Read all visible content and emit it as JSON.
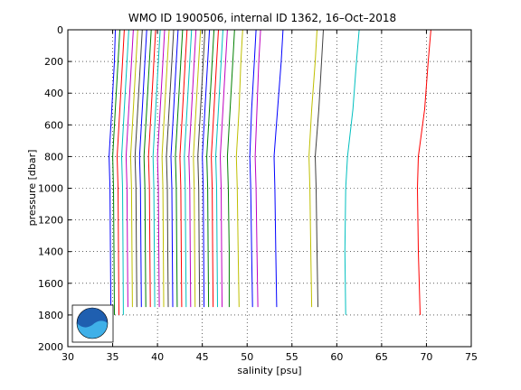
{
  "chart_data": {
    "type": "line",
    "title": "WMO ID 1900506, internal ID 1362, 16–Oct–2018",
    "xlabel": "salinity [psu]",
    "ylabel": "pressure [dbar]",
    "xlim": [
      30,
      75
    ],
    "ylim": [
      0,
      2000
    ],
    "y_reversed": true,
    "grid": true,
    "legend": "none",
    "xticks": [
      "30",
      "35",
      "40",
      "45",
      "50",
      "55",
      "60",
      "65",
      "70",
      "75"
    ],
    "yticks": [
      "0",
      "200",
      "400",
      "600",
      "800",
      "1000",
      "1200",
      "1400",
      "1600",
      "1800",
      "2000"
    ],
    "colors": [
      "#0000ff",
      "#008000",
      "#ff0000",
      "#00bfbf",
      "#bf00bf",
      "#bfbf00",
      "#404040"
    ],
    "series": [
      {
        "color": "#0000ff",
        "points": [
          [
            35.3,
            0
          ],
          [
            35.2,
            200
          ],
          [
            34.9,
            500
          ],
          [
            34.6,
            800
          ],
          [
            34.7,
            1000
          ],
          [
            34.75,
            1400
          ],
          [
            34.8,
            1800
          ]
        ]
      },
      {
        "color": "#008000",
        "points": [
          [
            35.8,
            0
          ],
          [
            35.6,
            200
          ],
          [
            35.3,
            500
          ],
          [
            35.0,
            800
          ],
          [
            35.1,
            1000
          ],
          [
            35.15,
            1400
          ],
          [
            35.2,
            1800
          ]
        ]
      },
      {
        "color": "#ff0000",
        "points": [
          [
            36.3,
            0
          ],
          [
            36.1,
            200
          ],
          [
            35.8,
            500
          ],
          [
            35.5,
            800
          ],
          [
            35.6,
            1000
          ],
          [
            35.65,
            1400
          ],
          [
            35.7,
            1800
          ]
        ]
      },
      {
        "color": "#00bfbf",
        "points": [
          [
            36.8,
            0
          ],
          [
            36.6,
            200
          ],
          [
            36.3,
            500
          ],
          [
            36.0,
            800
          ],
          [
            36.1,
            1000
          ],
          [
            36.15,
            1400
          ],
          [
            36.2,
            1800
          ]
        ]
      },
      {
        "color": "#bf00bf",
        "points": [
          [
            37.3,
            0
          ],
          [
            37.1,
            200
          ],
          [
            36.8,
            500
          ],
          [
            36.5,
            800
          ],
          [
            36.6,
            1000
          ],
          [
            36.65,
            1400
          ],
          [
            36.7,
            1750
          ]
        ]
      },
      {
        "color": "#bfbf00",
        "points": [
          [
            37.8,
            0
          ],
          [
            37.6,
            200
          ],
          [
            37.3,
            500
          ],
          [
            37.0,
            800
          ],
          [
            37.1,
            1000
          ],
          [
            37.15,
            1400
          ],
          [
            37.2,
            1750
          ]
        ]
      },
      {
        "color": "#404040",
        "points": [
          [
            38.3,
            0
          ],
          [
            38.1,
            200
          ],
          [
            37.8,
            500
          ],
          [
            37.5,
            800
          ],
          [
            37.6,
            1000
          ],
          [
            37.65,
            1400
          ],
          [
            37.7,
            1750
          ]
        ]
      },
      {
        "color": "#0000ff",
        "points": [
          [
            38.8,
            0
          ],
          [
            38.6,
            200
          ],
          [
            38.3,
            500
          ],
          [
            38.0,
            800
          ],
          [
            38.1,
            1000
          ],
          [
            38.15,
            1400
          ],
          [
            38.2,
            1750
          ]
        ]
      },
      {
        "color": "#008000",
        "points": [
          [
            39.3,
            0
          ],
          [
            39.1,
            200
          ],
          [
            38.8,
            500
          ],
          [
            38.5,
            800
          ],
          [
            38.6,
            1000
          ],
          [
            38.65,
            1400
          ],
          [
            38.7,
            1750
          ]
        ]
      },
      {
        "color": "#ff0000",
        "points": [
          [
            39.8,
            0
          ],
          [
            39.6,
            200
          ],
          [
            39.3,
            500
          ],
          [
            39.0,
            800
          ],
          [
            39.1,
            1000
          ],
          [
            39.15,
            1400
          ],
          [
            39.2,
            1750
          ]
        ]
      },
      {
        "color": "#00bfbf",
        "points": [
          [
            40.3,
            0
          ],
          [
            40.1,
            200
          ],
          [
            39.8,
            500
          ],
          [
            39.5,
            800
          ],
          [
            39.6,
            1000
          ],
          [
            39.65,
            1400
          ],
          [
            39.7,
            1750
          ]
        ]
      },
      {
        "color": "#bf00bf",
        "points": [
          [
            40.8,
            0
          ],
          [
            40.6,
            200
          ],
          [
            40.3,
            500
          ],
          [
            40.0,
            800
          ],
          [
            40.1,
            1000
          ],
          [
            40.15,
            1400
          ],
          [
            40.2,
            1750
          ]
        ]
      },
      {
        "color": "#bfbf00",
        "points": [
          [
            41.3,
            0
          ],
          [
            41.1,
            200
          ],
          [
            40.8,
            500
          ],
          [
            40.5,
            800
          ],
          [
            40.6,
            1000
          ],
          [
            40.65,
            1400
          ],
          [
            40.7,
            1750
          ]
        ]
      },
      {
        "color": "#404040",
        "points": [
          [
            41.8,
            0
          ],
          [
            41.6,
            200
          ],
          [
            41.3,
            500
          ],
          [
            41.0,
            800
          ],
          [
            41.1,
            1000
          ],
          [
            41.15,
            1400
          ],
          [
            41.2,
            1750
          ]
        ]
      },
      {
        "color": "#0000ff",
        "points": [
          [
            42.3,
            0
          ],
          [
            42.1,
            200
          ],
          [
            41.8,
            500
          ],
          [
            41.5,
            800
          ],
          [
            41.6,
            1000
          ],
          [
            41.65,
            1400
          ],
          [
            41.7,
            1750
          ]
        ]
      },
      {
        "color": "#008000",
        "points": [
          [
            42.8,
            0
          ],
          [
            42.6,
            200
          ],
          [
            42.3,
            500
          ],
          [
            42.0,
            800
          ],
          [
            42.1,
            1000
          ],
          [
            42.15,
            1400
          ],
          [
            42.2,
            1750
          ]
        ]
      },
      {
        "color": "#ff0000",
        "points": [
          [
            43.3,
            0
          ],
          [
            43.1,
            200
          ],
          [
            42.8,
            500
          ],
          [
            42.5,
            800
          ],
          [
            42.6,
            1000
          ],
          [
            42.65,
            1400
          ],
          [
            42.7,
            1750
          ]
        ]
      },
      {
        "color": "#00bfbf",
        "points": [
          [
            43.8,
            0
          ],
          [
            43.6,
            200
          ],
          [
            43.3,
            500
          ],
          [
            43.0,
            800
          ],
          [
            43.1,
            1000
          ],
          [
            43.15,
            1400
          ],
          [
            43.2,
            1750
          ]
        ]
      },
      {
        "color": "#bf00bf",
        "points": [
          [
            44.3,
            0
          ],
          [
            44.1,
            200
          ],
          [
            43.8,
            500
          ],
          [
            43.5,
            800
          ],
          [
            43.6,
            1000
          ],
          [
            43.65,
            1400
          ],
          [
            43.7,
            1750
          ]
        ]
      },
      {
        "color": "#bfbf00",
        "points": [
          [
            44.8,
            0
          ],
          [
            44.6,
            200
          ],
          [
            44.3,
            500
          ],
          [
            44.0,
            800
          ],
          [
            44.1,
            1000
          ],
          [
            44.15,
            1400
          ],
          [
            44.2,
            1750
          ]
        ]
      },
      {
        "color": "#404040",
        "points": [
          [
            45.3,
            0
          ],
          [
            45.1,
            200
          ],
          [
            44.8,
            500
          ],
          [
            44.5,
            800
          ],
          [
            44.6,
            1000
          ],
          [
            44.65,
            1400
          ],
          [
            44.7,
            1750
          ]
        ]
      },
      {
        "color": "#0000ff",
        "points": [
          [
            45.8,
            0
          ],
          [
            45.6,
            200
          ],
          [
            45.3,
            500
          ],
          [
            45.0,
            800
          ],
          [
            45.1,
            1000
          ],
          [
            45.15,
            1400
          ],
          [
            45.2,
            1750
          ]
        ]
      },
      {
        "color": "#008000",
        "points": [
          [
            46.3,
            0
          ],
          [
            46.1,
            200
          ],
          [
            45.8,
            500
          ],
          [
            45.5,
            800
          ],
          [
            45.6,
            1000
          ],
          [
            45.65,
            1400
          ],
          [
            45.7,
            1750
          ]
        ]
      },
      {
        "color": "#ff0000",
        "points": [
          [
            46.8,
            0
          ],
          [
            46.6,
            200
          ],
          [
            46.3,
            500
          ],
          [
            46.0,
            800
          ],
          [
            46.1,
            1000
          ],
          [
            46.15,
            1400
          ],
          [
            46.2,
            1750
          ]
        ]
      },
      {
        "color": "#00bfbf",
        "points": [
          [
            47.3,
            0
          ],
          [
            47.1,
            200
          ],
          [
            46.8,
            500
          ],
          [
            46.5,
            800
          ],
          [
            46.6,
            1000
          ],
          [
            46.65,
            1400
          ],
          [
            46.7,
            1750
          ]
        ]
      },
      {
        "color": "#bf00bf",
        "points": [
          [
            47.8,
            0
          ],
          [
            47.6,
            200
          ],
          [
            47.3,
            500
          ],
          [
            47.0,
            800
          ],
          [
            47.1,
            1000
          ],
          [
            47.15,
            1400
          ],
          [
            47.2,
            1750
          ]
        ]
      },
      {
        "color": "#bfbf00",
        "points": [
          [
            49.5,
            0
          ],
          [
            49.3,
            200
          ],
          [
            49.1,
            500
          ],
          [
            48.8,
            800
          ],
          [
            48.9,
            1000
          ],
          [
            49.0,
            1400
          ],
          [
            49.1,
            1750
          ]
        ]
      },
      {
        "color": "#008000",
        "points": [
          [
            48.6,
            0
          ],
          [
            48.4,
            200
          ],
          [
            48.1,
            500
          ],
          [
            47.8,
            800
          ],
          [
            47.9,
            1000
          ],
          [
            48.0,
            1400
          ],
          [
            48.0,
            1750
          ]
        ]
      },
      {
        "color": "#0000ff",
        "points": [
          [
            51.0,
            0
          ],
          [
            50.8,
            200
          ],
          [
            50.5,
            500
          ],
          [
            50.3,
            800
          ],
          [
            50.4,
            1000
          ],
          [
            50.5,
            1400
          ],
          [
            50.6,
            1750
          ]
        ]
      },
      {
        "color": "#bf00bf",
        "points": [
          [
            51.5,
            0
          ],
          [
            51.3,
            200
          ],
          [
            51.1,
            500
          ],
          [
            50.9,
            800
          ],
          [
            51.0,
            1000
          ],
          [
            51.1,
            1400
          ],
          [
            51.2,
            1750
          ]
        ]
      },
      {
        "color": "#0000ff",
        "points": [
          [
            54.0,
            0
          ],
          [
            53.8,
            200
          ],
          [
            53.4,
            500
          ],
          [
            53.0,
            800
          ],
          [
            53.1,
            1000
          ],
          [
            53.2,
            1400
          ],
          [
            53.3,
            1750
          ]
        ]
      },
      {
        "color": "#404040",
        "points": [
          [
            58.5,
            0
          ],
          [
            58.3,
            200
          ],
          [
            58.0,
            500
          ],
          [
            57.6,
            800
          ],
          [
            57.7,
            1000
          ],
          [
            57.8,
            1400
          ],
          [
            57.9,
            1750
          ]
        ]
      },
      {
        "color": "#bfbf00",
        "points": [
          [
            57.8,
            0
          ],
          [
            57.6,
            200
          ],
          [
            57.2,
            500
          ],
          [
            56.9,
            800
          ],
          [
            57.0,
            1000
          ],
          [
            57.1,
            1400
          ],
          [
            57.2,
            1750
          ]
        ]
      },
      {
        "color": "#00bfbf",
        "points": [
          [
            62.5,
            0
          ],
          [
            62.2,
            200
          ],
          [
            61.8,
            500
          ],
          [
            61.2,
            800
          ],
          [
            61.0,
            1000
          ],
          [
            60.9,
            1400
          ],
          [
            61.0,
            1800
          ]
        ]
      },
      {
        "color": "#ff0000",
        "points": [
          [
            70.5,
            0
          ],
          [
            70.2,
            200
          ],
          [
            69.8,
            500
          ],
          [
            69.1,
            800
          ],
          [
            69.0,
            1000
          ],
          [
            69.1,
            1400
          ],
          [
            69.3,
            1800
          ]
        ]
      }
    ]
  }
}
